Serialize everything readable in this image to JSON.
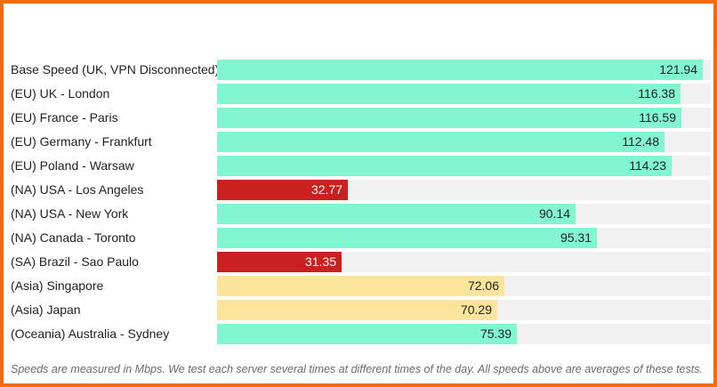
{
  "colors": {
    "green": "#82f5d1",
    "red": "#cc1f1f",
    "yellow": "#fde49c",
    "track": "#f1f1f1",
    "frame": "#f26b0f"
  },
  "chart_data": {
    "type": "bar",
    "orientation": "horizontal",
    "unit": "Mbps",
    "xlim": [
      0,
      124
    ],
    "grid": false,
    "categories": [
      "Base Speed (UK, VPN Disconnected)",
      "(EU) UK - London",
      "(EU) France - Paris",
      "(EU) Germany - Frankfurt",
      "(EU) Poland - Warsaw",
      "(NA) USA - Los Angeles",
      "(NA) USA - New York",
      "(NA) Canada - Toronto",
      "(SA) Brazil - Sao Paulo",
      "(Asia) Singapore",
      "(Asia) Japan",
      "(Oceania) Australia - Sydney"
    ],
    "values": [
      121.94,
      116.38,
      116.59,
      112.48,
      114.23,
      32.77,
      90.14,
      95.31,
      31.35,
      72.06,
      70.29,
      75.39
    ],
    "value_labels": [
      "121.94",
      "116.38",
      "116.59",
      "112.48",
      "114.23",
      "32.77",
      "90.14",
      "95.31",
      "31.35",
      "72.06",
      "70.29",
      "75.39"
    ],
    "bar_colors": [
      "green",
      "green",
      "green",
      "green",
      "green",
      "red",
      "green",
      "green",
      "red",
      "yellow",
      "yellow",
      "green"
    ]
  },
  "footnote": "Speeds are measured in Mbps. We test each server several times at different times of the day. All speeds above are averages of these tests."
}
